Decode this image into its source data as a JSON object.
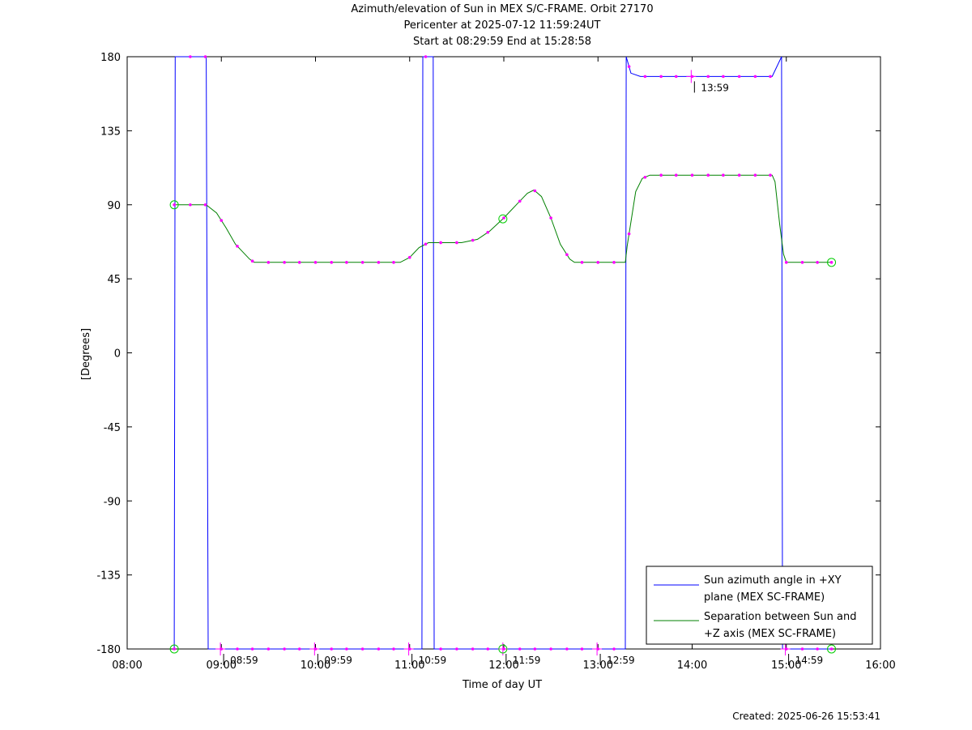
{
  "chart_data": {
    "type": "line",
    "title": "Azimuth/elevation of Sun in MEX S/C-FRAME.  Orbit 27170",
    "subtitle_lines": [
      "Pericenter at 2025-07-12 11:59:24UT",
      "Start at 08:29:59 End at 15:28:58"
    ],
    "xlabel": "Time of day UT",
    "ylabel": "[Degrees]",
    "xlim": [
      8.0,
      16.0
    ],
    "ylim": [
      -180,
      180
    ],
    "x_ticks": [
      {
        "v": 8,
        "label": "08:00"
      },
      {
        "v": 9,
        "label": "09:00"
      },
      {
        "v": 10,
        "label": "10:00"
      },
      {
        "v": 11,
        "label": "11:00"
      },
      {
        "v": 12,
        "label": "12:00"
      },
      {
        "v": 13,
        "label": "13:00"
      },
      {
        "v": 14,
        "label": "14:00"
      },
      {
        "v": 15,
        "label": "15:00"
      },
      {
        "v": 16,
        "label": "16:00"
      }
    ],
    "y_ticks": [
      {
        "v": 180,
        "label": "180"
      },
      {
        "v": 135,
        "label": "135"
      },
      {
        "v": 90,
        "label": "90"
      },
      {
        "v": 45,
        "label": "45"
      },
      {
        "v": 0,
        "label": "0"
      },
      {
        "v": -45,
        "label": "-45"
      },
      {
        "v": -90,
        "label": "-90"
      },
      {
        "v": -135,
        "label": "-135"
      },
      {
        "v": -180,
        "label": "-180"
      }
    ],
    "grid": false,
    "legend_position": "bottom-right",
    "series": [
      {
        "name": "Sun azimuth angle in +XY plane (MEX SC-FRAME)",
        "color": "#0000ff",
        "points": [
          [
            8.5,
            -180
          ],
          [
            8.51,
            180
          ],
          [
            8.84,
            180
          ],
          [
            8.86,
            -180
          ],
          [
            11.13,
            -180
          ],
          [
            11.14,
            180
          ],
          [
            11.25,
            180
          ],
          [
            11.26,
            -180
          ],
          [
            13.29,
            -180
          ],
          [
            13.3,
            180
          ],
          [
            13.35,
            170
          ],
          [
            13.45,
            168
          ],
          [
            14.85,
            168
          ],
          [
            14.95,
            180
          ],
          [
            14.96,
            -180
          ],
          [
            15.48,
            -180
          ]
        ],
        "marker_times": [
          8.5,
          8.67,
          8.83,
          9.0,
          9.17,
          9.33,
          9.5,
          9.67,
          9.83,
          10.0,
          10.17,
          10.33,
          10.5,
          10.67,
          10.83,
          11.0,
          11.17,
          11.33,
          11.5,
          11.67,
          11.83,
          12.0,
          12.17,
          12.33,
          12.5,
          12.67,
          12.83,
          13.0,
          13.17,
          13.33,
          13.5,
          13.67,
          13.83,
          14.0,
          14.17,
          14.33,
          14.5,
          14.67,
          14.83,
          15.0,
          15.17,
          15.33,
          15.48
        ],
        "hour_annotations": [
          {
            "t": 8.99,
            "label": "08:59"
          },
          {
            "t": 9.99,
            "label": "09:59"
          },
          {
            "t": 10.99,
            "label": "10:59"
          },
          {
            "t": 11.99,
            "label": "11:59"
          },
          {
            "t": 12.99,
            "label": "12:59"
          },
          {
            "t": 13.99,
            "label": "13:59"
          },
          {
            "t": 14.99,
            "label": "14:59"
          }
        ]
      },
      {
        "name": "Separation between Sun and +Z axis (MEX SC-FRAME)",
        "color": "#008000",
        "points": [
          [
            8.5,
            90
          ],
          [
            8.84,
            90
          ],
          [
            8.95,
            85
          ],
          [
            9.05,
            76
          ],
          [
            9.15,
            66
          ],
          [
            9.3,
            57
          ],
          [
            9.35,
            55
          ],
          [
            10.9,
            55
          ],
          [
            11.0,
            58
          ],
          [
            11.1,
            64
          ],
          [
            11.2,
            67
          ],
          [
            11.55,
            67
          ],
          [
            11.72,
            69
          ],
          [
            11.85,
            74
          ],
          [
            12.0,
            82
          ],
          [
            12.15,
            91
          ],
          [
            12.25,
            97
          ],
          [
            12.32,
            99
          ],
          [
            12.4,
            95
          ],
          [
            12.5,
            82
          ],
          [
            12.6,
            66
          ],
          [
            12.7,
            57
          ],
          [
            12.75,
            55
          ],
          [
            13.29,
            55
          ],
          [
            13.31,
            65
          ],
          [
            13.4,
            98
          ],
          [
            13.47,
            106
          ],
          [
            13.55,
            108
          ],
          [
            14.85,
            108
          ],
          [
            14.88,
            104
          ],
          [
            14.93,
            78
          ],
          [
            14.97,
            60
          ],
          [
            15.0,
            55
          ],
          [
            15.48,
            55
          ]
        ],
        "marker_times": [
          8.5,
          8.67,
          8.83,
          9.0,
          9.17,
          9.33,
          9.5,
          9.67,
          9.83,
          10.0,
          10.17,
          10.33,
          10.5,
          10.67,
          10.83,
          11.0,
          11.17,
          11.33,
          11.5,
          11.67,
          11.83,
          12.0,
          12.17,
          12.33,
          12.5,
          12.67,
          12.83,
          13.0,
          13.17,
          13.33,
          13.5,
          13.67,
          13.83,
          14.0,
          14.17,
          14.33,
          14.5,
          14.67,
          14.83,
          15.0,
          15.17,
          15.33,
          15.48
        ]
      }
    ],
    "start_end_marker_times": [
      8.5,
      11.99,
      15.48
    ]
  },
  "footer": {
    "created": "Created: 2025-06-26 15:53:41"
  }
}
